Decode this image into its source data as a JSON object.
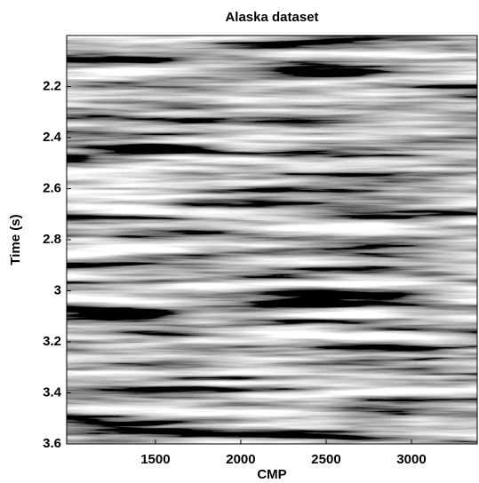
{
  "chart_data": {
    "type": "image",
    "title": "Alaska dataset",
    "xlabel": "CMP",
    "ylabel": "Time (s)",
    "xlim": [
      980,
      3385
    ],
    "ylim": [
      2.0,
      3.6
    ],
    "y_inverted": true,
    "xticks": [
      1500,
      2000,
      2500,
      3000
    ],
    "yticks": [
      2.2,
      2.4,
      2.6,
      2.8,
      3,
      3.2,
      3.4,
      3.6
    ],
    "colormap": "gray"
  }
}
